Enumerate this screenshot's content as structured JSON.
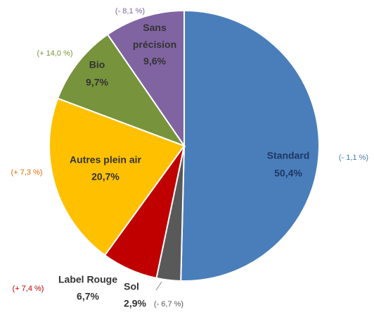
{
  "chart_data": {
    "type": "pie",
    "categories": [
      "Standard",
      "Sol",
      "Label Rouge",
      "Autres plein air",
      "Bio",
      "Sans précision"
    ],
    "values": [
      50.4,
      2.9,
      6.7,
      20.7,
      9.7,
      9.6
    ],
    "value_labels": [
      "50,4%",
      "2,9%",
      "6,7%",
      "20,7%",
      "9,7%",
      "9,6%"
    ],
    "colors": [
      "#4a7ebb",
      "#595959",
      "#c00000",
      "#ffc000",
      "#77933c",
      "#8064a2"
    ],
    "annotations": [
      "(- 1,1 %)",
      "(- 6,7 %)",
      "(+ 7,4 %)",
      "(+ 7,3 %)",
      "(+ 14,0 %)",
      "(- 8,1 %)"
    ]
  }
}
